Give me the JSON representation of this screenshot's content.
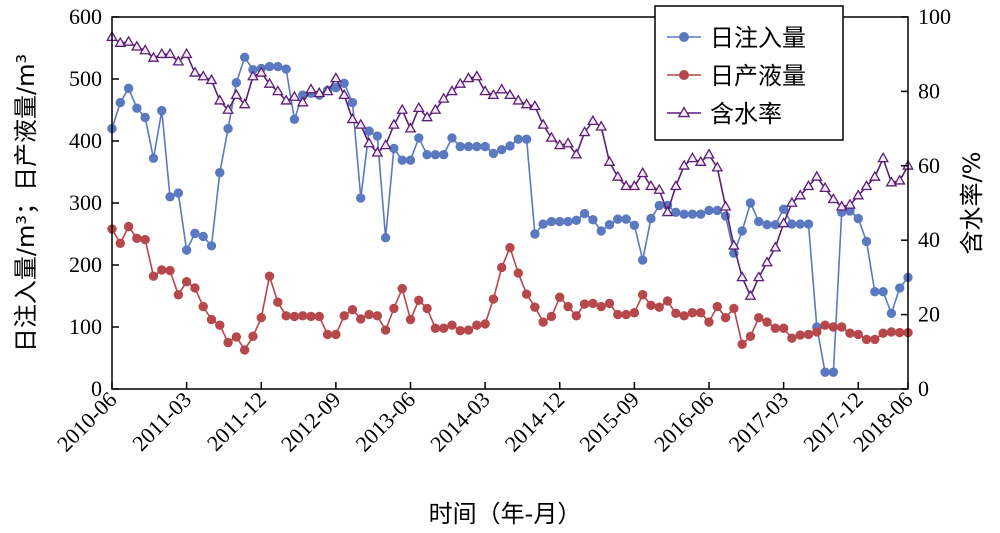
{
  "chart_data": {
    "type": "line",
    "title": "",
    "xlabel": "时间（年-月）",
    "ylabel": "日注入量/m³；日产液量/m³",
    "y2label": "含水率/%",
    "ylim": [
      0,
      600
    ],
    "yticks": [
      0,
      100,
      200,
      300,
      400,
      500,
      600
    ],
    "y2lim": [
      0,
      100
    ],
    "y2ticks": [
      0,
      20,
      40,
      60,
      80,
      100
    ],
    "xticks": [
      "2010-06",
      "2011-03",
      "2011-12",
      "2012-09",
      "2013-06",
      "2014-03",
      "2014-12",
      "2015-09",
      "2016-06",
      "2017-03",
      "2017-12",
      "2018-06"
    ],
    "grid": false,
    "legend": "top-right",
    "x": [
      "2010-06",
      "2010-07",
      "2010-08",
      "2010-09",
      "2010-10",
      "2010-11",
      "2010-12",
      "2011-01",
      "2011-02",
      "2011-03",
      "2011-04",
      "2011-05",
      "2011-06",
      "2011-07",
      "2011-08",
      "2011-09",
      "2011-10",
      "2011-11",
      "2011-12",
      "2012-01",
      "2012-02",
      "2012-03",
      "2012-04",
      "2012-05",
      "2012-06",
      "2012-07",
      "2012-08",
      "2012-09",
      "2012-10",
      "2012-11",
      "2012-12",
      "2013-01",
      "2013-02",
      "2013-03",
      "2013-04",
      "2013-05",
      "2013-06",
      "2013-07",
      "2013-08",
      "2013-09",
      "2013-10",
      "2013-11",
      "2013-12",
      "2014-01",
      "2014-02",
      "2014-03",
      "2014-04",
      "2014-05",
      "2014-06",
      "2014-07",
      "2014-08",
      "2014-09",
      "2014-10",
      "2014-11",
      "2014-12",
      "2015-01",
      "2015-02",
      "2015-03",
      "2015-04",
      "2015-05",
      "2015-06",
      "2015-07",
      "2015-08",
      "2015-09",
      "2015-10",
      "2015-11",
      "2015-12",
      "2016-01",
      "2016-02",
      "2016-03",
      "2016-04",
      "2016-05",
      "2016-06",
      "2016-07",
      "2016-08",
      "2016-09",
      "2016-10",
      "2016-11",
      "2016-12",
      "2017-01",
      "2017-02",
      "2017-03",
      "2017-04",
      "2017-05",
      "2017-06",
      "2017-07",
      "2017-08",
      "2017-09",
      "2017-10",
      "2017-11",
      "2017-12",
      "2018-01",
      "2018-02",
      "2018-03",
      "2018-04",
      "2018-05",
      "2018-06"
    ],
    "series": [
      {
        "name": "日注入量",
        "axis": "left",
        "marker": "circle",
        "color": "#5a79c0",
        "values": [
          420,
          462,
          485,
          453,
          438,
          372,
          449,
          310,
          316,
          224,
          251,
          246,
          231,
          349,
          420,
          494,
          535,
          515,
          517,
          520,
          520,
          516,
          435,
          474,
          477,
          474,
          482,
          486,
          493,
          462,
          308,
          416,
          408,
          244,
          388,
          369,
          369,
          405,
          378,
          378,
          378,
          405,
          391,
          391,
          391,
          391,
          380,
          386,
          392,
          403,
          403,
          250,
          266,
          270,
          270,
          270,
          272,
          283,
          273,
          255,
          265,
          274,
          274,
          264,
          208,
          275,
          296,
          296,
          285,
          282,
          282,
          282,
          288,
          288,
          279,
          219,
          255,
          300,
          270,
          265,
          265,
          290,
          266,
          266,
          266,
          100,
          27,
          27,
          285,
          287,
          275,
          238,
          157,
          157,
          122,
          163,
          180
        ]
      },
      {
        "name": "日产液量",
        "axis": "left",
        "marker": "circle",
        "color": "#b6474a",
        "values": [
          258,
          235,
          262,
          243,
          241,
          182,
          192,
          191,
          152,
          173,
          163,
          133,
          112,
          103,
          75,
          84,
          63,
          85,
          115,
          182,
          140,
          118,
          117,
          118,
          117,
          117,
          88,
          88,
          118,
          128,
          113,
          120,
          118,
          95,
          130,
          162,
          112,
          143,
          130,
          98,
          98,
          103,
          94,
          95,
          103,
          105,
          145,
          196,
          228,
          187,
          153,
          132,
          108,
          117,
          148,
          133,
          118,
          137,
          138,
          133,
          138,
          120,
          120,
          123,
          152,
          135,
          132,
          142,
          122,
          118,
          123,
          123,
          108,
          133,
          115,
          130,
          72,
          85,
          115,
          108,
          98,
          98,
          82,
          87,
          88,
          92,
          103,
          100,
          100,
          90,
          88,
          80,
          80,
          90,
          92,
          91,
          91
        ]
      },
      {
        "name": "含水率",
        "axis": "right",
        "marker": "triangle",
        "color": "#5b1f76",
        "values": [
          94.6,
          93,
          93.3,
          92,
          91,
          89,
          90,
          90,
          88,
          90,
          85,
          84,
          83,
          77.5,
          75,
          79,
          76.5,
          84,
          85,
          82,
          80,
          77.5,
          78.5,
          77,
          80.5,
          79.5,
          80,
          83.5,
          79,
          72.5,
          71,
          66,
          63.5,
          65.5,
          71,
          75,
          70,
          75.5,
          73,
          75,
          78,
          80,
          82,
          83.5,
          84,
          80,
          79,
          80.5,
          79,
          77.5,
          76.5,
          76,
          71,
          67.5,
          65.5,
          66,
          63,
          69,
          72,
          70.5,
          61,
          57,
          54.5,
          54.5,
          58,
          54.5,
          53.5,
          47.5,
          54.5,
          60,
          62,
          61,
          63,
          59.5,
          49,
          38.5,
          30,
          25,
          30,
          34,
          38,
          44.5,
          50,
          52,
          54.5,
          57,
          54,
          51,
          49,
          49.5,
          52,
          54.5,
          57,
          62,
          55.5,
          56,
          60
        ]
      }
    ]
  }
}
